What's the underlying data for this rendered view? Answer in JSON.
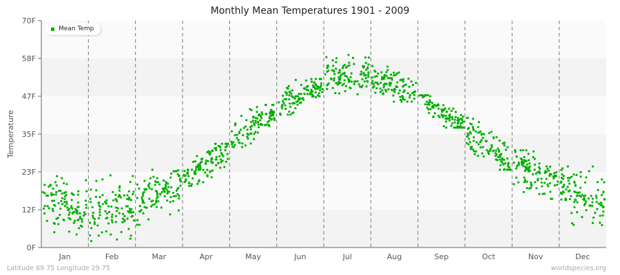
{
  "chart_data": {
    "type": "scatter",
    "title": "Monthly Mean Temperatures 1901 - 2009",
    "ylabel": "Temperature",
    "xlabel": "",
    "ylim": [
      0,
      70
    ],
    "yticks": [
      "0F",
      "12F",
      "23F",
      "35F",
      "47F",
      "58F",
      "70F"
    ],
    "categories": [
      "Jan",
      "Feb",
      "Mar",
      "Apr",
      "May",
      "Jun",
      "Jul",
      "Aug",
      "Sep",
      "Oct",
      "Nov",
      "Dec"
    ],
    "years": [
      1901,
      2009
    ],
    "series": [
      {
        "name": "Mean Temp",
        "color": "#00b000",
        "monthly_summary": [
          {
            "month": "Jan",
            "mean": 13,
            "min": 3,
            "max": 22
          },
          {
            "month": "Feb",
            "mean": 12,
            "min": 2,
            "max": 24
          },
          {
            "month": "Mar",
            "mean": 17,
            "min": 7,
            "max": 24
          },
          {
            "month": "Apr",
            "mean": 26,
            "min": 19,
            "max": 32
          },
          {
            "month": "May",
            "mean": 37,
            "min": 31,
            "max": 44
          },
          {
            "month": "Jun",
            "mean": 47,
            "min": 41,
            "max": 52
          },
          {
            "month": "Jul",
            "mean": 53,
            "min": 47,
            "max": 60
          },
          {
            "month": "Aug",
            "mean": 50,
            "min": 45,
            "max": 56
          },
          {
            "month": "Sep",
            "mean": 42,
            "min": 37,
            "max": 47
          },
          {
            "month": "Oct",
            "mean": 31,
            "min": 24,
            "max": 40
          },
          {
            "month": "Nov",
            "mean": 23,
            "min": 15,
            "max": 30
          },
          {
            "month": "Dec",
            "mean": 16,
            "min": 5,
            "max": 25
          }
        ]
      }
    ],
    "grid": true,
    "legend": "top-left"
  },
  "footer": {
    "location": "Latitude 69.75 Longitude 29.75",
    "source": "worldspecies.org"
  }
}
